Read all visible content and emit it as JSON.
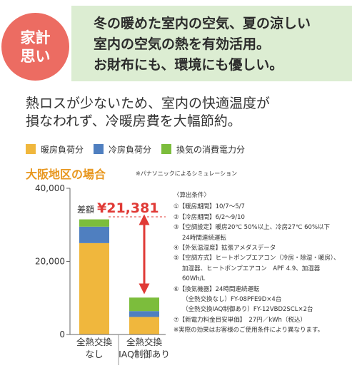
{
  "banner": {
    "badge": [
      "家計",
      "思い"
    ],
    "lines": [
      "冬の暖めた室内の空気、夏の涼しい",
      "室内の空気の熱を有効活用。",
      "お財布にも、環境にも優しい。"
    ]
  },
  "subtitle": [
    "熱ロスが少ないため、室内の快適温度が",
    "損なわれず、冷暖房費を大幅節約。"
  ],
  "colors": {
    "heating": "#f0b73d",
    "cooling": "#4f7fc0",
    "ventilation": "#7cbd3c",
    "badge": "#ec6c62",
    "banner": "#dcedd2",
    "accent": "#e8971f",
    "diff": "#e03a36"
  },
  "section": {
    "title": "大阪地区の場合",
    "note": "※パナソニックによるシミュレーション"
  },
  "chart_data": {
    "type": "bar",
    "stacked": true,
    "categories": [
      [
        "全熱交換",
        "なし"
      ],
      [
        "全熱交換",
        "IAQ制御あり"
      ]
    ],
    "series": [
      {
        "name": "暖房負荷分",
        "values": [
          25000,
          4800
        ]
      },
      {
        "name": "冷房負荷分",
        "values": [
          4500,
          1600
        ]
      },
      {
        "name": "換気の消費電力分",
        "values": [
          2000,
          3700
        ]
      }
    ],
    "ylim": [
      0,
      40000
    ],
    "yticks": [
      "40,000",
      "20,000",
      "0"
    ],
    "difference": {
      "label": "差額",
      "value": "¥21,381"
    }
  },
  "conditions": [
    {
      "text": "〈算出条件〉",
      "indent": false
    },
    {
      "text": "①【暖房期間】10/7〜5/7",
      "indent": false
    },
    {
      "text": "②【冷房期間】6/2〜9/10",
      "indent": false
    },
    {
      "text": "③【空調設定】暖房20℃ 50%以上、冷房27℃ 60%以下",
      "indent": false
    },
    {
      "text": "24時間連続運転",
      "indent": true
    },
    {
      "text": "④【外気温湿度】拡張アメダスデータ",
      "indent": false
    },
    {
      "text": "⑤【空調方式】ヒートポンプエアコン（冷房・除湿・暖房）、",
      "indent": false
    },
    {
      "text": "加湿器、ヒートポンプエアコン　APF 4.9、加湿器",
      "indent": true
    },
    {
      "text": "60Wh/L",
      "indent": true
    },
    {
      "text": "⑥【換気機器】24時間連続運転",
      "indent": false
    },
    {
      "text": "（全熱交換なし）FY-08PFE9D×4台",
      "indent": true
    },
    {
      "text": "（全熱交換IAQ制御あり）FY-12VBD2SCL×2台",
      "indent": true
    },
    {
      "text": "⑦【新電力料金目安単価】　27円／kWh（税込）",
      "indent": false
    },
    {
      "text": "※実際の効果はお客様のご使用条件により異なります。",
      "indent": false
    }
  ]
}
